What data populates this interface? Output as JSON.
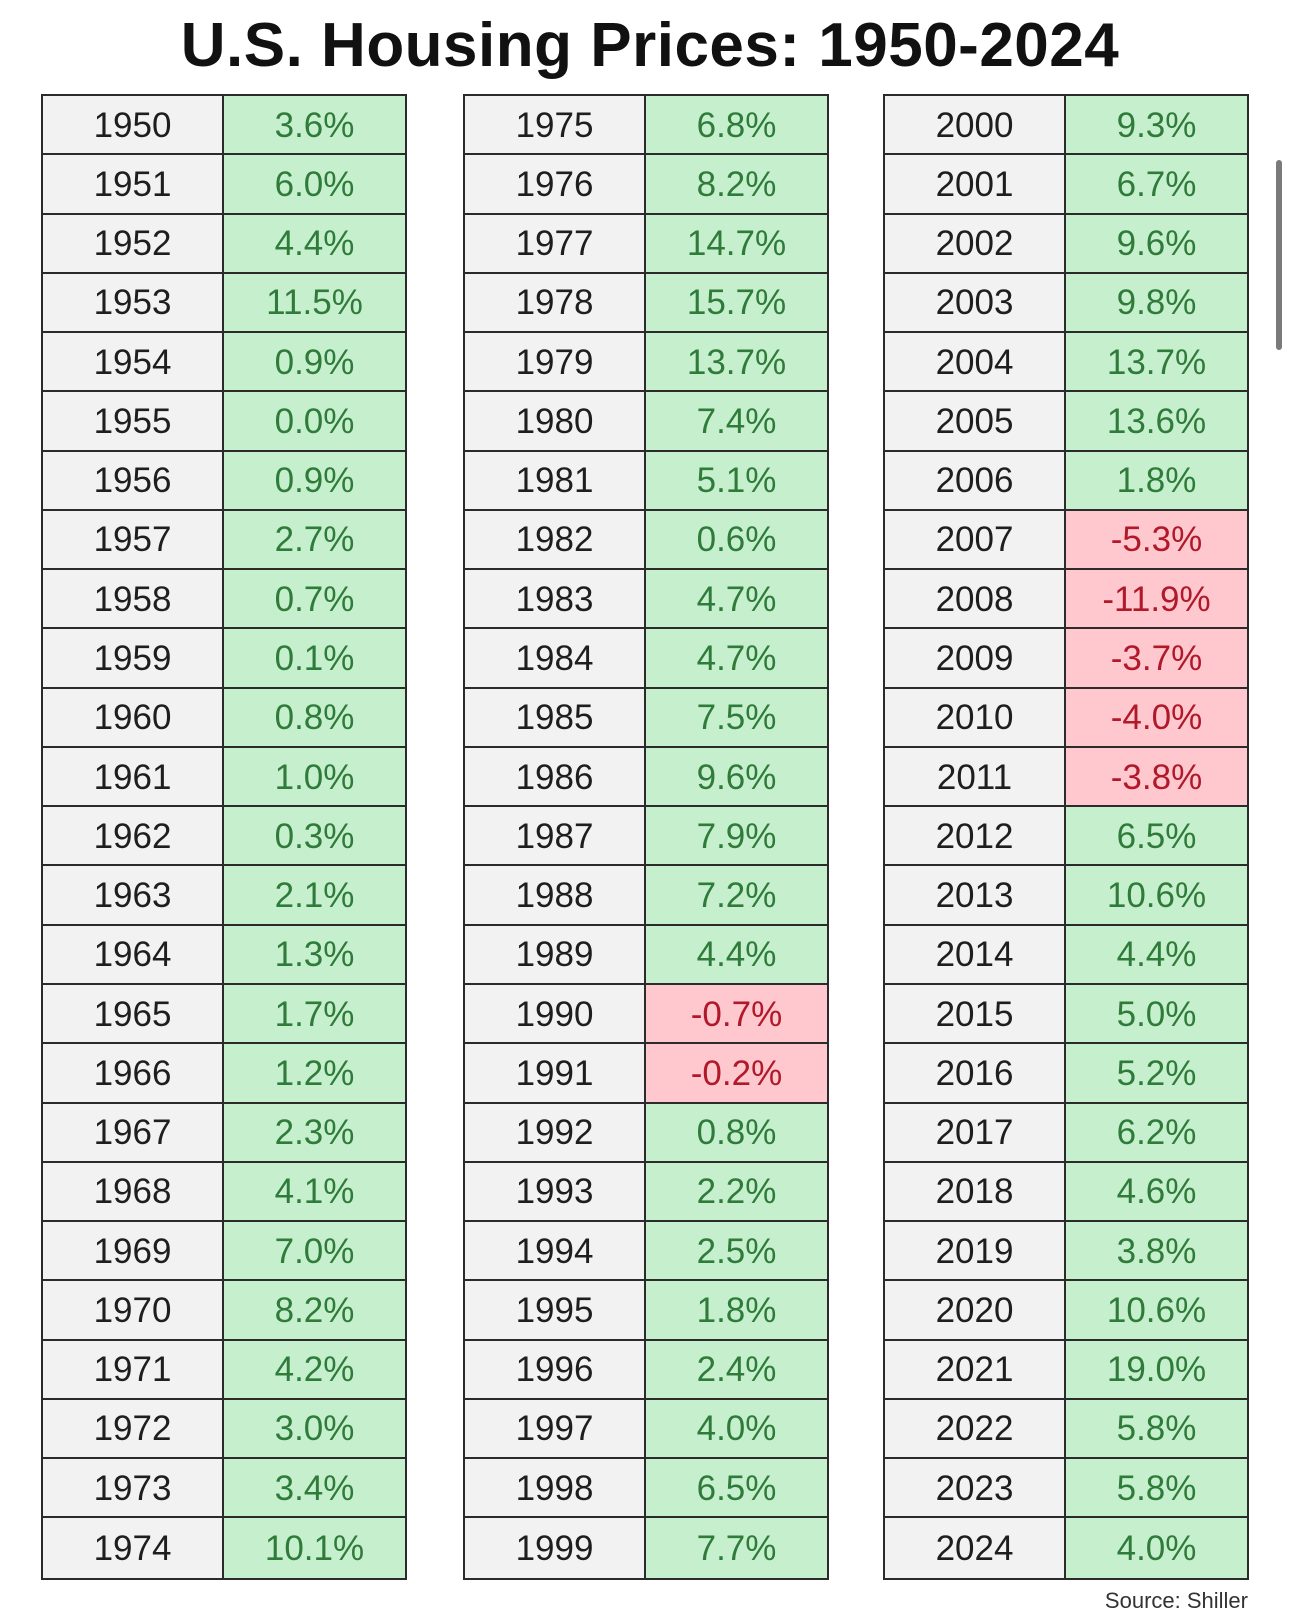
{
  "title": "U.S. Housing Prices: 1950-2024",
  "source": "Source: Shiller",
  "colors": {
    "positive_fill": "#c6efce",
    "positive_text": "#2f7b3a",
    "negative_fill": "#ffc7ce",
    "negative_text": "#b0192a",
    "year_fill": "#f2f2f2"
  },
  "chart_data": {
    "type": "table",
    "title": "U.S. Housing Prices: 1950-2024",
    "columns": [
      [
        {
          "year": "1950",
          "change": "3.6%"
        },
        {
          "year": "1951",
          "change": "6.0%"
        },
        {
          "year": "1952",
          "change": "4.4%"
        },
        {
          "year": "1953",
          "change": "11.5%"
        },
        {
          "year": "1954",
          "change": "0.9%"
        },
        {
          "year": "1955",
          "change": "0.0%"
        },
        {
          "year": "1956",
          "change": "0.9%"
        },
        {
          "year": "1957",
          "change": "2.7%"
        },
        {
          "year": "1958",
          "change": "0.7%"
        },
        {
          "year": "1959",
          "change": "0.1%"
        },
        {
          "year": "1960",
          "change": "0.8%"
        },
        {
          "year": "1961",
          "change": "1.0%"
        },
        {
          "year": "1962",
          "change": "0.3%"
        },
        {
          "year": "1963",
          "change": "2.1%"
        },
        {
          "year": "1964",
          "change": "1.3%"
        },
        {
          "year": "1965",
          "change": "1.7%"
        },
        {
          "year": "1966",
          "change": "1.2%"
        },
        {
          "year": "1967",
          "change": "2.3%"
        },
        {
          "year": "1968",
          "change": "4.1%"
        },
        {
          "year": "1969",
          "change": "7.0%"
        },
        {
          "year": "1970",
          "change": "8.2%"
        },
        {
          "year": "1971",
          "change": "4.2%"
        },
        {
          "year": "1972",
          "change": "3.0%"
        },
        {
          "year": "1973",
          "change": "3.4%"
        },
        {
          "year": "1974",
          "change": "10.1%"
        }
      ],
      [
        {
          "year": "1975",
          "change": "6.8%"
        },
        {
          "year": "1976",
          "change": "8.2%"
        },
        {
          "year": "1977",
          "change": "14.7%"
        },
        {
          "year": "1978",
          "change": "15.7%"
        },
        {
          "year": "1979",
          "change": "13.7%"
        },
        {
          "year": "1980",
          "change": "7.4%"
        },
        {
          "year": "1981",
          "change": "5.1%"
        },
        {
          "year": "1982",
          "change": "0.6%"
        },
        {
          "year": "1983",
          "change": "4.7%"
        },
        {
          "year": "1984",
          "change": "4.7%"
        },
        {
          "year": "1985",
          "change": "7.5%"
        },
        {
          "year": "1986",
          "change": "9.6%"
        },
        {
          "year": "1987",
          "change": "7.9%"
        },
        {
          "year": "1988",
          "change": "7.2%"
        },
        {
          "year": "1989",
          "change": "4.4%"
        },
        {
          "year": "1990",
          "change": "-0.7%"
        },
        {
          "year": "1991",
          "change": "-0.2%"
        },
        {
          "year": "1992",
          "change": "0.8%"
        },
        {
          "year": "1993",
          "change": "2.2%"
        },
        {
          "year": "1994",
          "change": "2.5%"
        },
        {
          "year": "1995",
          "change": "1.8%"
        },
        {
          "year": "1996",
          "change": "2.4%"
        },
        {
          "year": "1997",
          "change": "4.0%"
        },
        {
          "year": "1998",
          "change": "6.5%"
        },
        {
          "year": "1999",
          "change": "7.7%"
        }
      ],
      [
        {
          "year": "2000",
          "change": "9.3%"
        },
        {
          "year": "2001",
          "change": "6.7%"
        },
        {
          "year": "2002",
          "change": "9.6%"
        },
        {
          "year": "2003",
          "change": "9.8%"
        },
        {
          "year": "2004",
          "change": "13.7%"
        },
        {
          "year": "2005",
          "change": "13.6%"
        },
        {
          "year": "2006",
          "change": "1.8%"
        },
        {
          "year": "2007",
          "change": "-5.3%"
        },
        {
          "year": "2008",
          "change": "-11.9%"
        },
        {
          "year": "2009",
          "change": "-3.7%"
        },
        {
          "year": "2010",
          "change": "-4.0%"
        },
        {
          "year": "2011",
          "change": "-3.8%"
        },
        {
          "year": "2012",
          "change": "6.5%"
        },
        {
          "year": "2013",
          "change": "10.6%"
        },
        {
          "year": "2014",
          "change": "4.4%"
        },
        {
          "year": "2015",
          "change": "5.0%"
        },
        {
          "year": "2016",
          "change": "5.2%"
        },
        {
          "year": "2017",
          "change": "6.2%"
        },
        {
          "year": "2018",
          "change": "4.6%"
        },
        {
          "year": "2019",
          "change": "3.8%"
        },
        {
          "year": "2020",
          "change": "10.6%"
        },
        {
          "year": "2021",
          "change": "19.0%"
        },
        {
          "year": "2022",
          "change": "5.8%"
        },
        {
          "year": "2023",
          "change": "5.8%"
        },
        {
          "year": "2024",
          "change": "4.0%"
        }
      ]
    ]
  }
}
